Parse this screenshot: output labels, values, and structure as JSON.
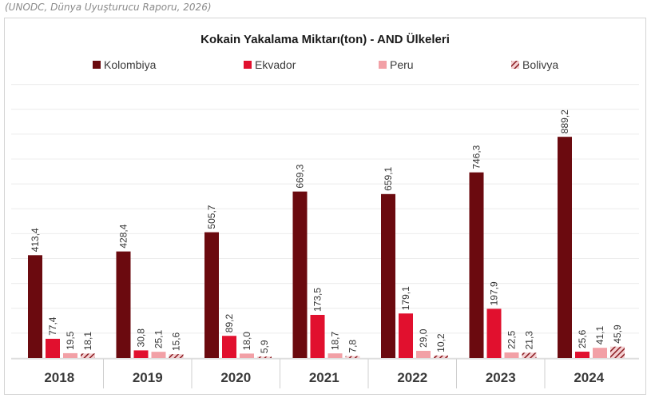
{
  "source_note": "(UNODC, Dünya Uyuşturucu Raporu, 2026)",
  "chart_data": {
    "type": "bar",
    "title": "Kokain Yakalama Miktarı(ton) - AND Ülkeleri",
    "xlabel": "",
    "ylabel": "",
    "ylim": [
      0,
      1100
    ],
    "grid": true,
    "legend_position": "top",
    "categories": [
      "2018",
      "2019",
      "2020",
      "2021",
      "2022",
      "2023",
      "2024"
    ],
    "series": [
      {
        "name": "Kolombiya",
        "color": "#6b0a0f",
        "pattern": "solid",
        "values": [
          413.4,
          428.4,
          505.7,
          669.3,
          659.1,
          746.3,
          889.2
        ],
        "labels": [
          "413,4",
          "428,4",
          "505,7",
          "669,3",
          "659,1",
          "746,3",
          "889,2"
        ]
      },
      {
        "name": "Ekvador",
        "color": "#e1102e",
        "pattern": "solid",
        "values": [
          77.4,
          30.8,
          89.2,
          173.5,
          179.1,
          197.9,
          25.6
        ],
        "labels": [
          "77,4",
          "30,8",
          "89,2",
          "173,5",
          "179,1",
          "197,9",
          "25,6"
        ]
      },
      {
        "name": "Peru",
        "color": "#f2a0a6",
        "pattern": "solid",
        "values": [
          19.5,
          25.1,
          18.0,
          18.7,
          29.0,
          22.5,
          41.1
        ],
        "labels": [
          "19,5",
          "25,1",
          "18,0",
          "18,7",
          "29,0",
          "22,5",
          "41,1"
        ]
      },
      {
        "name": "Bolivya",
        "color": "#8a1a20",
        "pattern": "hatched",
        "values": [
          18.1,
          15.6,
          5.9,
          7.8,
          10.2,
          21.3,
          45.9
        ],
        "labels": [
          "18,1",
          "15,6",
          "5,9",
          "7,8",
          "10,2",
          "21,3",
          "45,9"
        ]
      }
    ]
  }
}
